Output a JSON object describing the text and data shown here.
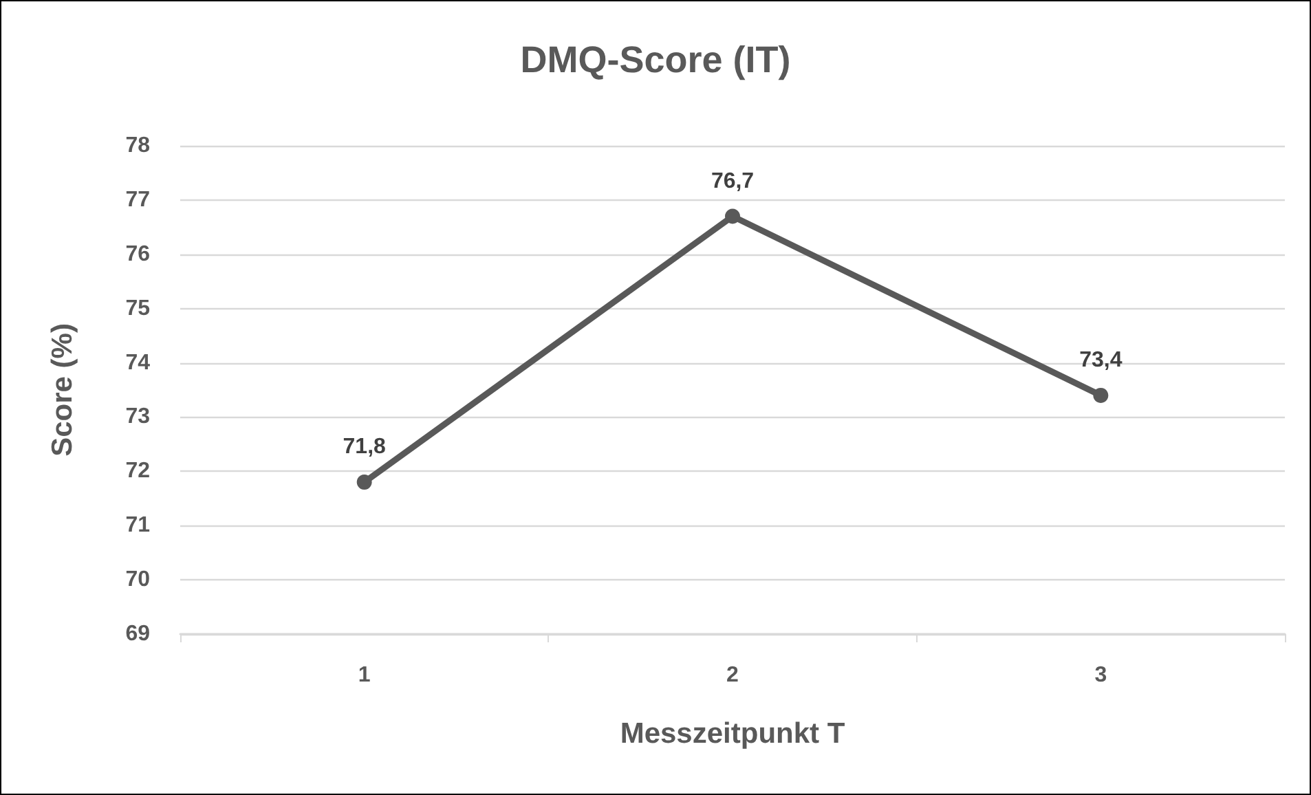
{
  "chart_data": {
    "type": "line",
    "title": "DMQ-Score (IT)",
    "xlabel": "Messzeitpunkt T",
    "ylabel": "Score (%)",
    "categories": [
      "1",
      "2",
      "3"
    ],
    "series": [
      {
        "color": "#595959",
        "values": [
          71.8,
          76.7,
          73.4
        ],
        "value_labels": [
          "71,8",
          "76,7",
          "73,4"
        ]
      }
    ],
    "ylim": [
      69,
      78
    ],
    "yticks": [
      69,
      70,
      71,
      72,
      73,
      74,
      75,
      76,
      77,
      78
    ],
    "grid": "y",
    "marker": "circle",
    "line_style": "solid"
  }
}
